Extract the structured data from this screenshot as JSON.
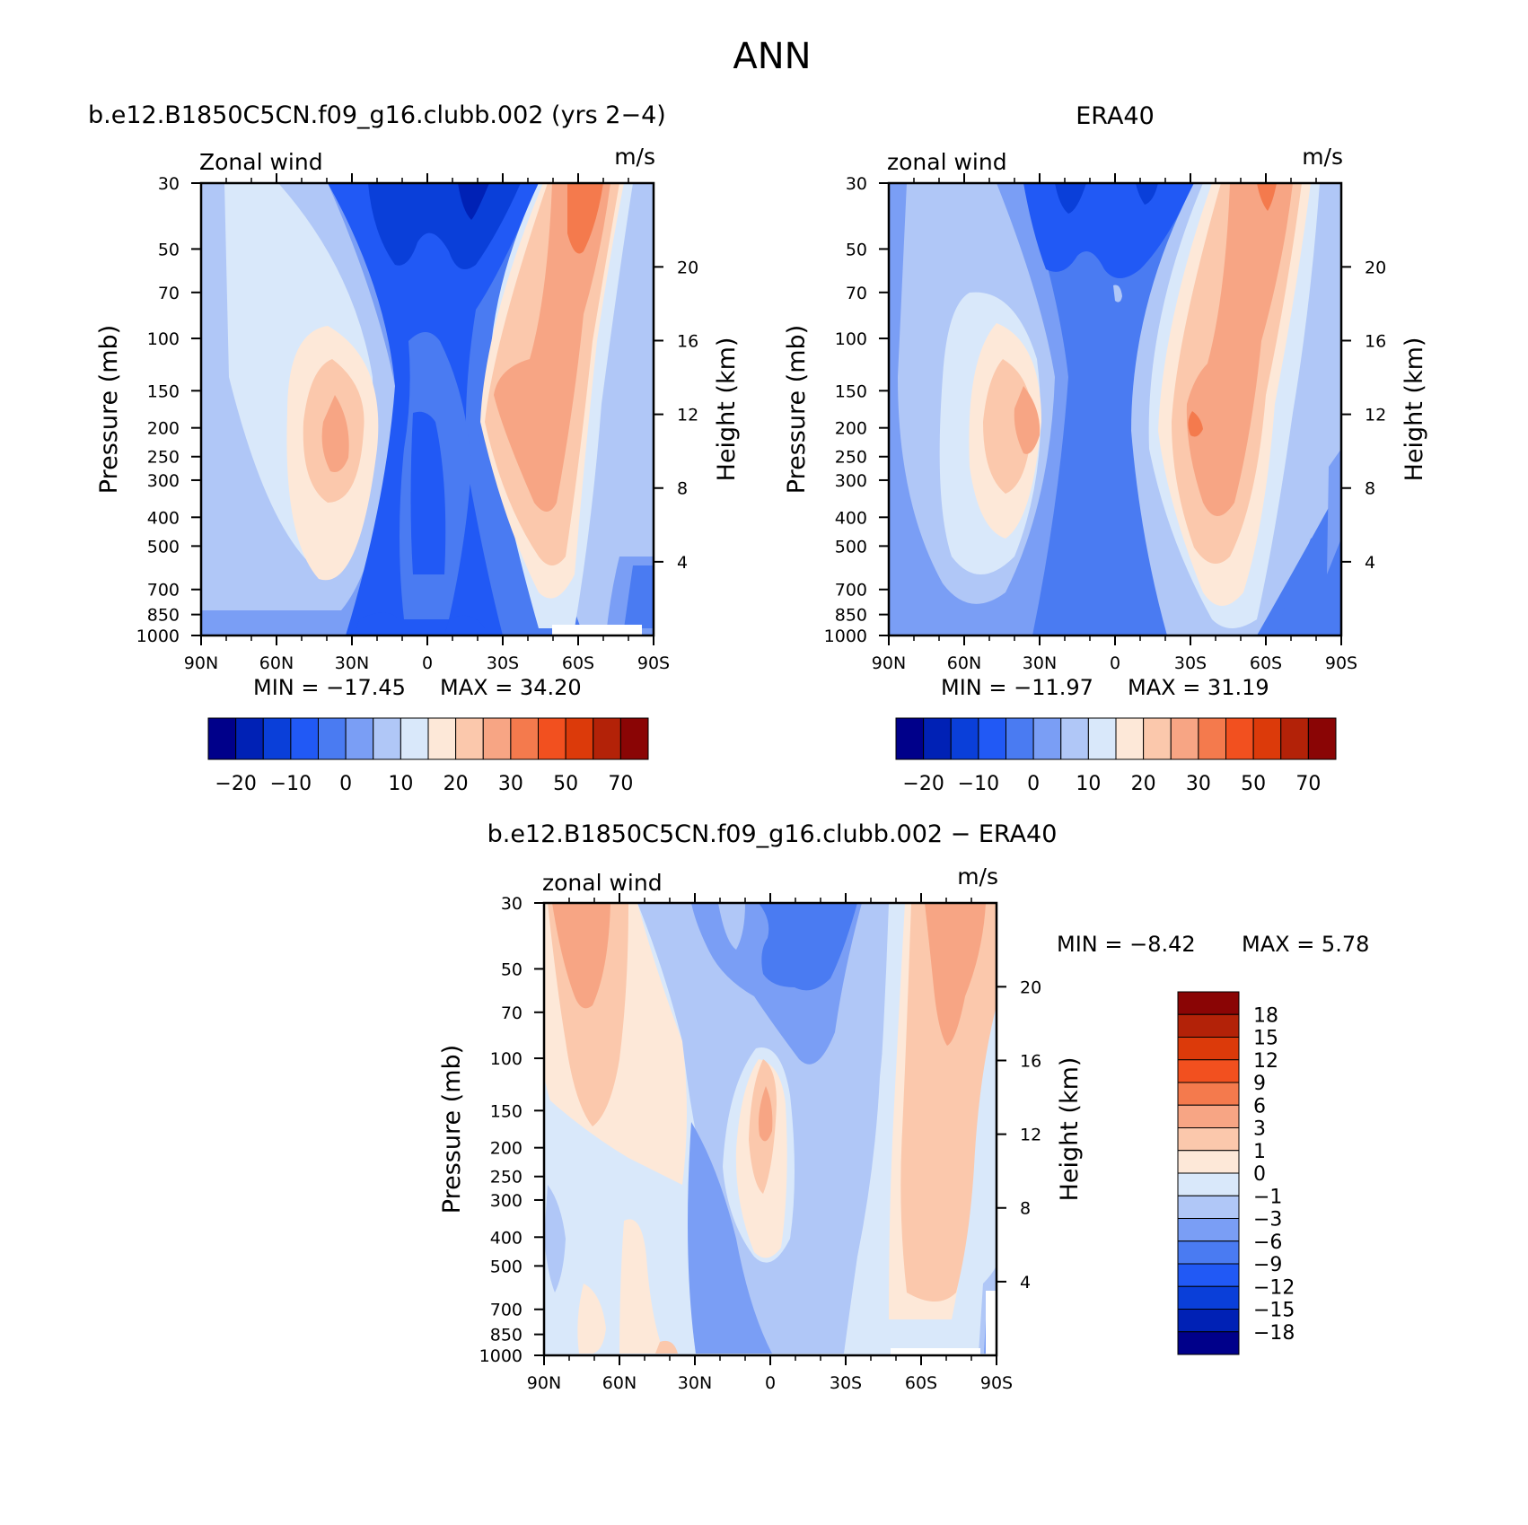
{
  "figure": {
    "title": "ANN"
  },
  "chart_data": [
    {
      "type": "heatmap",
      "id": "model",
      "title": "b.e12.B1850C5CN.f09_g16.clubb.002 (yrs 2−4)",
      "variable": "Zonal wind",
      "units": "m/s",
      "ylabel": "Pressure (mb)",
      "ylabel_right": "Height (km)",
      "x_ticks": [
        "90N",
        "60N",
        "30N",
        "0",
        "30S",
        "60S",
        "90S"
      ],
      "x_tick_values": [
        90,
        60,
        30,
        0,
        -30,
        -60,
        -90
      ],
      "y_ticks": [
        30,
        50,
        70,
        100,
        150,
        200,
        250,
        300,
        400,
        500,
        700,
        850,
        1000
      ],
      "right_ticks": [
        20,
        16,
        12,
        8,
        4
      ],
      "xlim": [
        90,
        -90
      ],
      "ylim": [
        1000,
        30
      ],
      "min_label": "MIN = −17.45",
      "max_label": "MAX = 34.20",
      "min": -17.45,
      "max": 34.2,
      "colorbar_labels": [
        "−20",
        "−10",
        "0",
        "10",
        "20",
        "30",
        "50",
        "70"
      ]
    },
    {
      "type": "heatmap",
      "id": "obs",
      "title": "ERA40",
      "variable": "zonal wind",
      "units": "m/s",
      "ylabel": "Pressure (mb)",
      "ylabel_right": "Height (km)",
      "x_ticks": [
        "90N",
        "60N",
        "30N",
        "0",
        "30S",
        "60S",
        "90S"
      ],
      "x_tick_values": [
        90,
        60,
        30,
        0,
        -30,
        -60,
        -90
      ],
      "y_ticks": [
        30,
        50,
        70,
        100,
        150,
        200,
        250,
        300,
        400,
        500,
        700,
        850,
        1000
      ],
      "right_ticks": [
        20,
        16,
        12,
        8,
        4
      ],
      "xlim": [
        90,
        -90
      ],
      "ylim": [
        1000,
        30
      ],
      "min_label": "MIN = −11.97",
      "max_label": "MAX = 31.19",
      "min": -11.97,
      "max": 31.19,
      "colorbar_labels": [
        "−20",
        "−10",
        "0",
        "10",
        "20",
        "30",
        "50",
        "70"
      ]
    },
    {
      "type": "heatmap",
      "id": "diff",
      "title": "b.e12.B1850C5CN.f09_g16.clubb.002 − ERA40",
      "variable": "zonal wind",
      "units": "m/s",
      "ylabel": "Pressure (mb)",
      "ylabel_right": "Height (km)",
      "x_ticks": [
        "90N",
        "60N",
        "30N",
        "0",
        "30S",
        "60S",
        "90S"
      ],
      "x_tick_values": [
        90,
        60,
        30,
        0,
        -30,
        -60,
        -90
      ],
      "y_ticks": [
        30,
        50,
        70,
        100,
        150,
        200,
        250,
        300,
        400,
        500,
        700,
        850,
        1000
      ],
      "right_ticks": [
        20,
        16,
        12,
        8,
        4
      ],
      "xlim": [
        90,
        -90
      ],
      "ylim": [
        1000,
        30
      ],
      "min_label": "MIN = −8.42",
      "max_label": "MAX = 5.78",
      "min": -8.42,
      "max": 5.78,
      "colorbar_labels": [
        "18",
        "15",
        "12",
        "9",
        "6",
        "3",
        "1",
        "0",
        "−1",
        "−3",
        "−6",
        "−9",
        "−12",
        "−15",
        "−18"
      ]
    }
  ],
  "colorscale": [
    "#00008a",
    "#0021b5",
    "#0a3fd9",
    "#2159f5",
    "#4a7bf2",
    "#7a9ef5",
    "#b0c7f7",
    "#d9e8fa",
    "#fde8d8",
    "#fbc8ac",
    "#f7a584",
    "#f47a4d",
    "#f2501f",
    "#dc3a0a",
    "#b32208",
    "#8a0505"
  ]
}
